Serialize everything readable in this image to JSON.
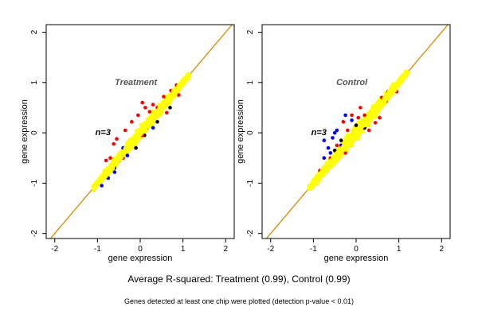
{
  "colors": {
    "background": "#ffffff",
    "axis": "#000000",
    "identity_line": "#d98a00",
    "panel_title": "#555555",
    "points": {
      "yellow": "#ffff00",
      "red": "#ff0000",
      "blue": "#0000ff",
      "black": "#000000"
    }
  },
  "chart_data": [
    {
      "type": "scatter",
      "title": "Treatment",
      "annotation": "n=3",
      "xlabel": "gene expression",
      "ylabel": "gene expression",
      "xlim": [
        -2.2,
        2.2
      ],
      "ylim": [
        -2.1,
        2.15
      ],
      "xticks": [
        -2,
        -1,
        0,
        1,
        2
      ],
      "yticks": [
        -2,
        -1,
        0,
        1,
        2
      ],
      "identity_line": true,
      "cloud": {
        "x_min": -1.1,
        "x_max": 1.15,
        "spread": 0.1,
        "flare": 0.07
      },
      "points": {
        "red": [
          [
            -0.62,
            -0.22
          ],
          [
            -0.55,
            -0.12
          ],
          [
            -0.35,
            0.05
          ],
          [
            -0.2,
            0.22
          ],
          [
            0.12,
            0.5
          ],
          [
            0.22,
            0.42
          ],
          [
            0.3,
            0.56
          ],
          [
            0.55,
            0.72
          ],
          [
            0.62,
            0.66
          ],
          [
            0.72,
            0.84
          ],
          [
            -0.4,
            -0.5
          ],
          [
            -0.15,
            -0.2
          ],
          [
            0.05,
            -0.05
          ],
          [
            0.35,
            0.3
          ],
          [
            0.5,
            0.45
          ],
          [
            0.62,
            0.4
          ],
          [
            -0.05,
            0.35
          ],
          [
            0.85,
            0.95
          ],
          [
            0.4,
            0.5
          ],
          [
            -0.7,
            -0.5
          ],
          [
            0.15,
            0.1
          ],
          [
            0.05,
            0.6
          ],
          [
            0.9,
            0.75
          ],
          [
            -0.8,
            -0.55
          ]
        ],
        "blue": [
          [
            -0.9,
            -1.05
          ],
          [
            -0.6,
            -0.78
          ],
          [
            -0.75,
            -0.9
          ],
          [
            -0.5,
            -0.55
          ],
          [
            0.3,
            0.1
          ],
          [
            -0.3,
            -0.45
          ],
          [
            -0.4,
            -0.3
          ]
        ],
        "black": [
          [
            -0.1,
            -0.3
          ],
          [
            0.1,
            -0.05
          ],
          [
            0.4,
            0.22
          ],
          [
            -0.6,
            -0.7
          ],
          [
            0.7,
            0.5
          ]
        ]
      }
    },
    {
      "type": "scatter",
      "title": "Control",
      "annotation": "n=3",
      "xlabel": "gene expression",
      "ylabel": "gene expression",
      "xlim": [
        -2.2,
        2.2
      ],
      "ylim": [
        -2.1,
        2.15
      ],
      "xticks": [
        -2,
        -1,
        0,
        1,
        2
      ],
      "yticks": [
        -2,
        -1,
        0,
        1,
        2
      ],
      "identity_line": true,
      "cloud": {
        "x_min": -1.1,
        "x_max": 1.2,
        "spread": 0.13,
        "flare": 0.07
      },
      "points": {
        "red": [
          [
            -0.45,
            -0.25
          ],
          [
            -0.2,
            0.05
          ],
          [
            0.05,
            0.3
          ],
          [
            0.2,
            0.35
          ],
          [
            0.5,
            0.55
          ],
          [
            0.6,
            0.7
          ],
          [
            0.7,
            0.62
          ],
          [
            0.75,
            0.82
          ],
          [
            -0.1,
            0.35
          ],
          [
            0.3,
            0.05
          ],
          [
            0.45,
            0.2
          ],
          [
            -0.6,
            -0.5
          ],
          [
            -0.25,
            -0.4
          ],
          [
            0.35,
            0.4
          ],
          [
            -0.3,
            0.22
          ],
          [
            0.55,
            0.3
          ],
          [
            0.1,
            0.5
          ],
          [
            0.85,
            0.88
          ],
          [
            0.95,
            0.82
          ],
          [
            -0.85,
            -0.75
          ]
        ],
        "blue": [
          [
            -0.75,
            -0.15
          ],
          [
            -0.55,
            -0.1
          ],
          [
            -0.45,
            0.05
          ],
          [
            -0.25,
            0.35
          ],
          [
            -0.6,
            -0.4
          ],
          [
            -0.75,
            -0.5
          ],
          [
            -0.35,
            -0.25
          ],
          [
            -0.5,
            0.0
          ],
          [
            -0.1,
            0.25
          ],
          [
            -0.65,
            -0.3
          ]
        ],
        "black": [
          [
            -0.35,
            -0.15
          ],
          [
            0.0,
            0.15
          ],
          [
            -0.5,
            -0.35
          ],
          [
            0.2,
            0.1
          ]
        ]
      }
    }
  ],
  "summary": "Average R-squared: Treatment (0.99), Control (0.99)",
  "footnote": "Genes detected at least one chip were plotted (detection p-value < 0.01)"
}
